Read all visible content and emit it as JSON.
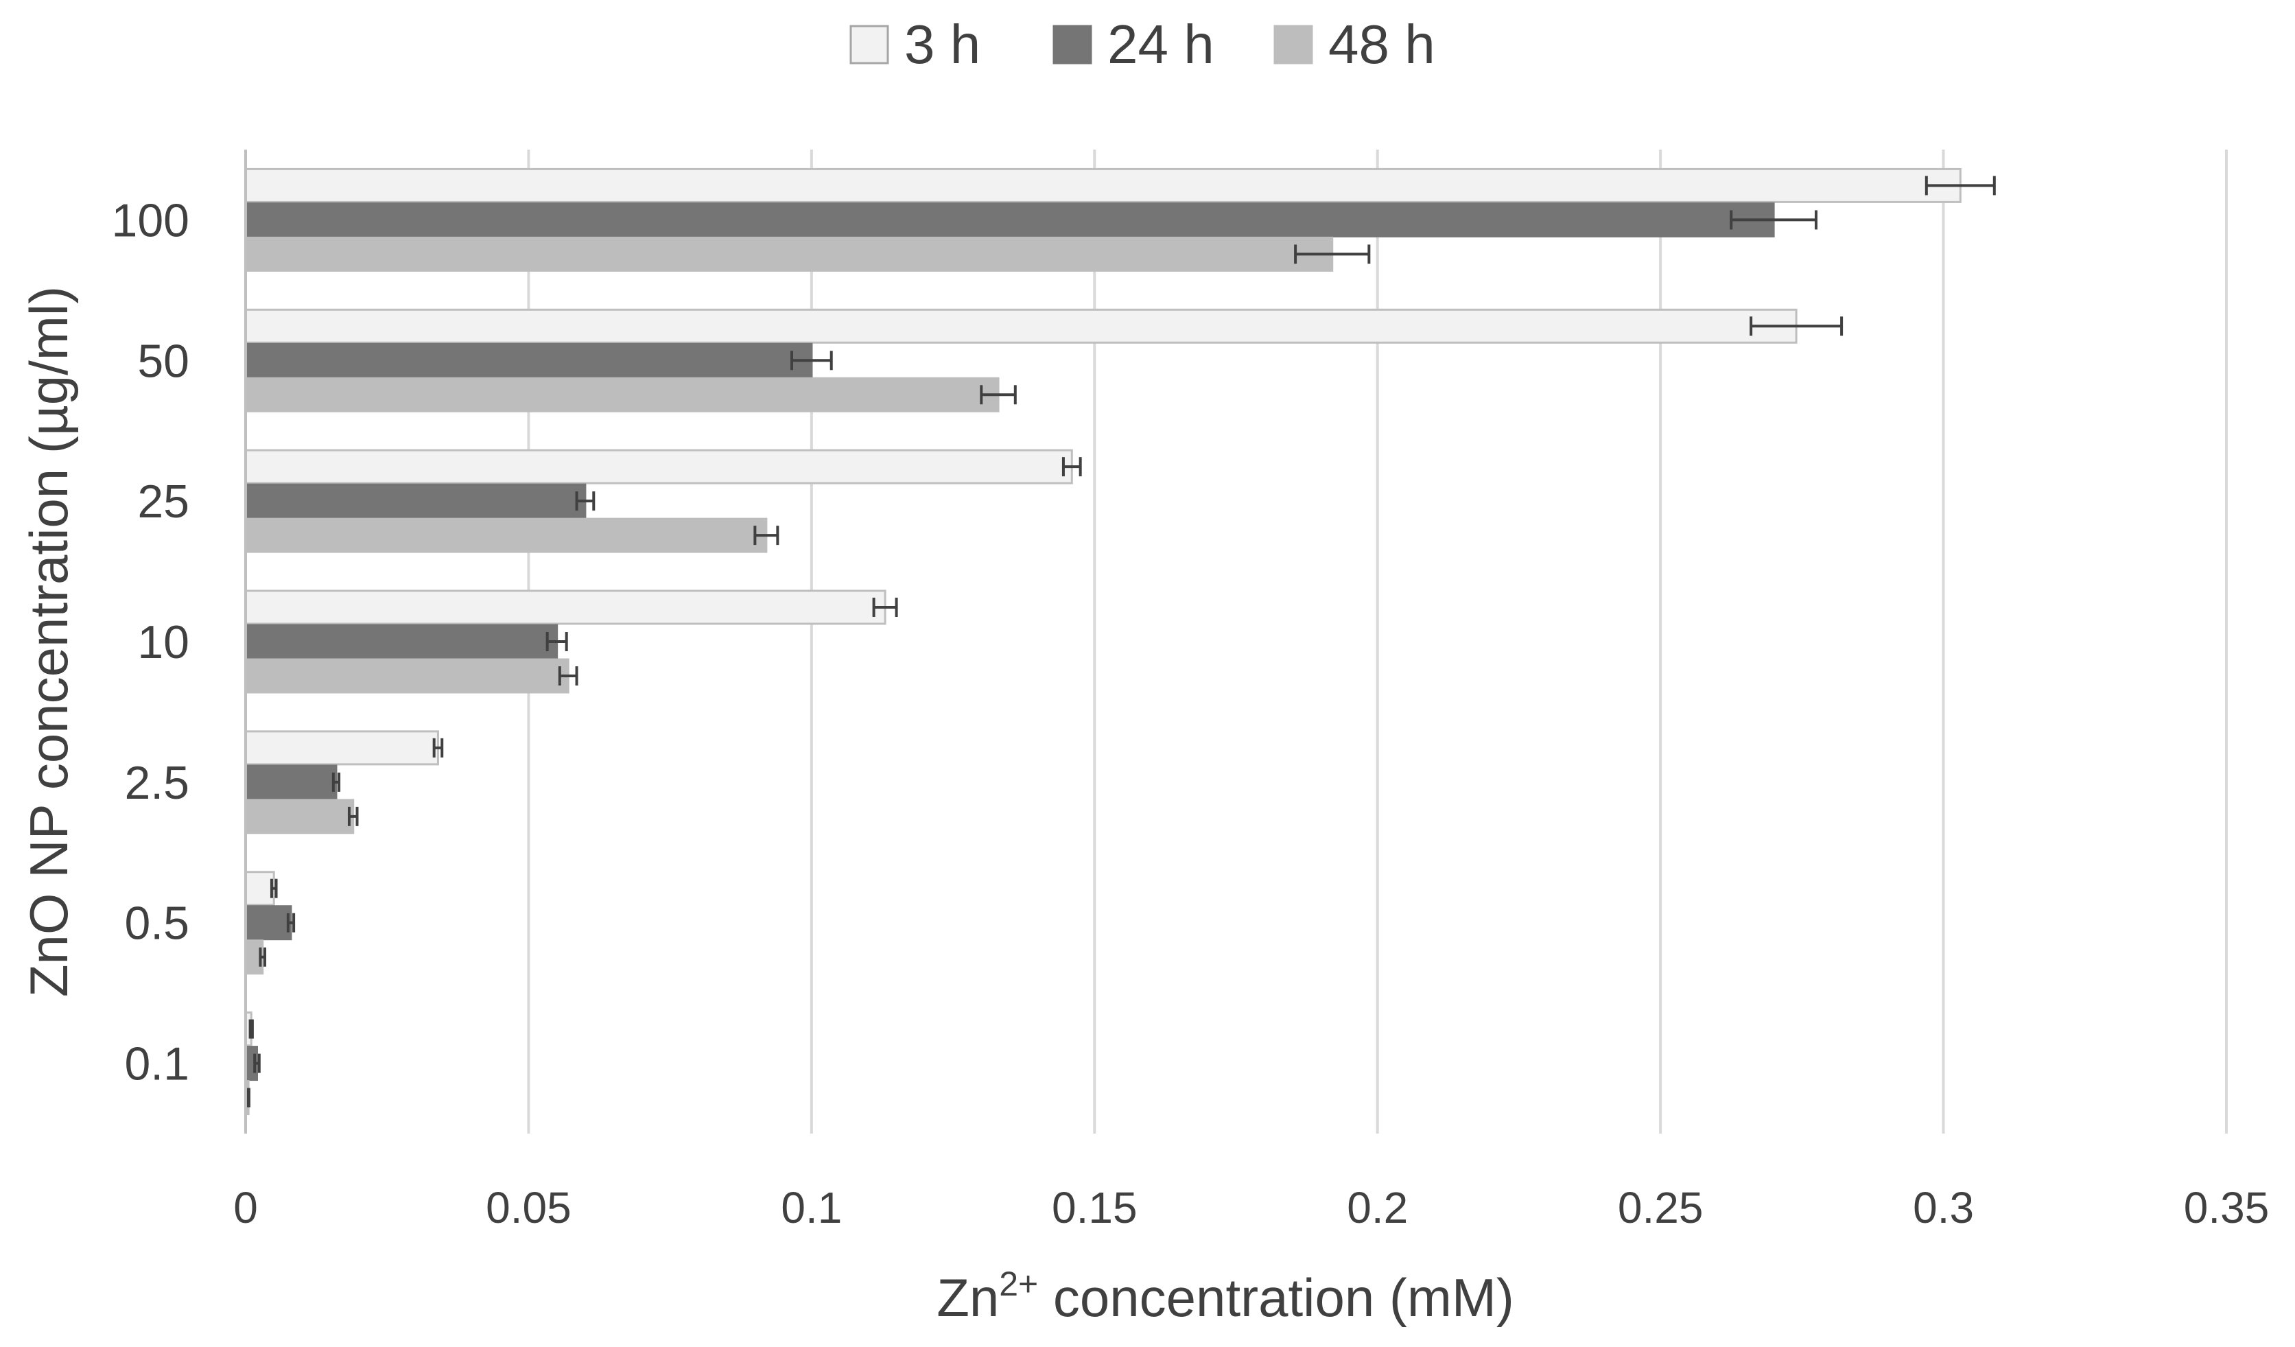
{
  "chart_data": {
    "type": "bar",
    "orientation": "horizontal",
    "categories": [
      "100",
      "50",
      "25",
      "10",
      "2.5",
      "0.5",
      "0.1"
    ],
    "series": [
      {
        "name": "3 h",
        "color": "#f2f2f2",
        "stroke": "#bfbfbf",
        "values": [
          0.303,
          0.274,
          0.146,
          0.113,
          0.034,
          0.005,
          0.001
        ],
        "errors": [
          0.006,
          0.008,
          0.0015,
          0.002,
          0.0007,
          0.0004,
          0.0002
        ]
      },
      {
        "name": "24 h",
        "color": "#757575",
        "stroke": "#757575",
        "values": [
          0.27,
          0.1,
          0.06,
          0.055,
          0.016,
          0.008,
          0.002
        ],
        "errors": [
          0.0075,
          0.0035,
          0.0015,
          0.0017,
          0.0005,
          0.0005,
          0.0004
        ]
      },
      {
        "name": "48 h",
        "color": "#bdbdbd",
        "stroke": "#bdbdbd",
        "values": [
          0.192,
          0.133,
          0.092,
          0.057,
          0.019,
          0.003,
          0.0005
        ],
        "errors": [
          0.0065,
          0.003,
          0.002,
          0.0015,
          0.0007,
          0.0004,
          0.0001
        ]
      }
    ],
    "xticks": [
      "0",
      "0.05",
      "0.1",
      "0.15",
      "0.2",
      "0.25",
      "0.3",
      "0.35"
    ],
    "xlim": [
      0,
      0.35
    ],
    "xlabel_base": "Zn",
    "xlabel_sup": "2+",
    "xlabel_rest": " concentration (mM)",
    "ylabel": "ZnO NP concentration (µg/ml)",
    "grid": "vertical",
    "legend_position": "top-center",
    "error_bar_color": "#404040"
  }
}
